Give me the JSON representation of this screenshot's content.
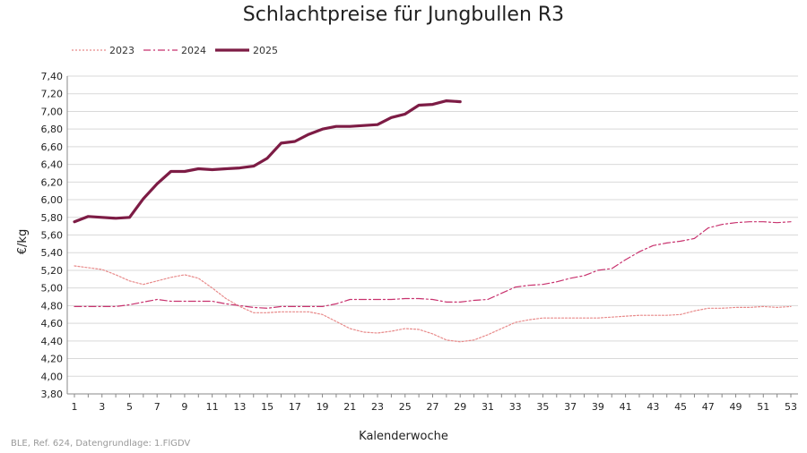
{
  "chart_data": {
    "type": "line",
    "title": "Schlachtpreise für Jungbullen R3",
    "xlabel": "Kalenderwoche",
    "ylabel": "€/kg",
    "xlim": [
      1,
      53
    ],
    "ylim": [
      3.8,
      7.4
    ],
    "y_ticks": [
      "3,80",
      "4,00",
      "4,20",
      "4,40",
      "4,60",
      "4,80",
      "5,00",
      "5,20",
      "5,40",
      "5,60",
      "5,80",
      "6,00",
      "6,20",
      "6,40",
      "6,60",
      "6,80",
      "7,00",
      "7,20",
      "7,40"
    ],
    "x_ticks": [
      "1",
      "3",
      "5",
      "7",
      "9",
      "11",
      "13",
      "15",
      "17",
      "19",
      "21",
      "23",
      "25",
      "27",
      "29",
      "31",
      "33",
      "35",
      "37",
      "39",
      "41",
      "43",
      "45",
      "47",
      "49",
      "51",
      "53"
    ],
    "grid": "horizontal",
    "legend_position": "top-left",
    "series": [
      {
        "name": "2023",
        "style": "dotted",
        "color": "#e88a8a",
        "x": [
          1,
          2,
          3,
          4,
          5,
          6,
          7,
          8,
          9,
          10,
          11,
          12,
          13,
          14,
          15,
          16,
          17,
          18,
          19,
          20,
          21,
          22,
          23,
          24,
          25,
          26,
          27,
          28,
          29,
          30,
          31,
          32,
          33,
          34,
          35,
          36,
          37,
          38,
          39,
          40,
          41,
          42,
          43,
          44,
          45,
          46,
          47,
          48,
          49,
          50,
          51,
          52,
          53
        ],
        "values": [
          5.25,
          5.23,
          5.21,
          5.15,
          5.08,
          5.04,
          5.08,
          5.12,
          5.15,
          5.11,
          5.0,
          4.88,
          4.79,
          4.72,
          4.72,
          4.73,
          4.73,
          4.73,
          4.7,
          4.62,
          4.54,
          4.5,
          4.49,
          4.51,
          4.54,
          4.53,
          4.48,
          4.41,
          4.39,
          4.41,
          4.47,
          4.54,
          4.61,
          4.64,
          4.66,
          4.66,
          4.66,
          4.66,
          4.66,
          4.67,
          4.68,
          4.69,
          4.69,
          4.69,
          4.7,
          4.74,
          4.77,
          4.77,
          4.78,
          4.78,
          4.79,
          4.78,
          4.79
        ]
      },
      {
        "name": "2024",
        "style": "dashdot",
        "color": "#c8326e",
        "x": [
          1,
          2,
          3,
          4,
          5,
          6,
          7,
          8,
          9,
          10,
          11,
          12,
          13,
          14,
          15,
          16,
          17,
          18,
          19,
          20,
          21,
          22,
          23,
          24,
          25,
          26,
          27,
          28,
          29,
          30,
          31,
          32,
          33,
          34,
          35,
          36,
          37,
          38,
          39,
          40,
          41,
          42,
          43,
          44,
          45,
          46,
          47,
          48,
          49,
          50,
          51,
          52,
          53
        ],
        "values": [
          4.79,
          4.79,
          4.79,
          4.79,
          4.81,
          4.84,
          4.87,
          4.85,
          4.85,
          4.85,
          4.85,
          4.82,
          4.8,
          4.78,
          4.77,
          4.79,
          4.79,
          4.79,
          4.79,
          4.82,
          4.87,
          4.87,
          4.87,
          4.87,
          4.88,
          4.88,
          4.87,
          4.84,
          4.84,
          4.86,
          4.87,
          4.94,
          5.01,
          5.03,
          5.04,
          5.07,
          5.11,
          5.14,
          5.2,
          5.22,
          5.32,
          5.41,
          5.48,
          5.51,
          5.53,
          5.56,
          5.68,
          5.72,
          5.74,
          5.75,
          5.75,
          5.74,
          5.75
        ]
      },
      {
        "name": "2025",
        "style": "solid",
        "color": "#7d1c45",
        "x": [
          1,
          2,
          3,
          4,
          5,
          6,
          7,
          8,
          9,
          10,
          11,
          12,
          13,
          14,
          15,
          16,
          17,
          18,
          19,
          20,
          21,
          22,
          23,
          24,
          25,
          26,
          27,
          28,
          29
        ],
        "values": [
          5.75,
          5.81,
          5.8,
          5.79,
          5.8,
          6.01,
          6.18,
          6.32,
          6.32,
          6.35,
          6.34,
          6.35,
          6.36,
          6.38,
          6.47,
          6.64,
          6.66,
          6.74,
          6.8,
          6.83,
          6.83,
          6.84,
          6.85,
          6.93,
          6.97,
          7.07,
          7.08,
          7.12,
          7.11
        ]
      }
    ]
  },
  "source_note": "BLE, Ref. 624, Datengrundlage: 1.FlGDV"
}
